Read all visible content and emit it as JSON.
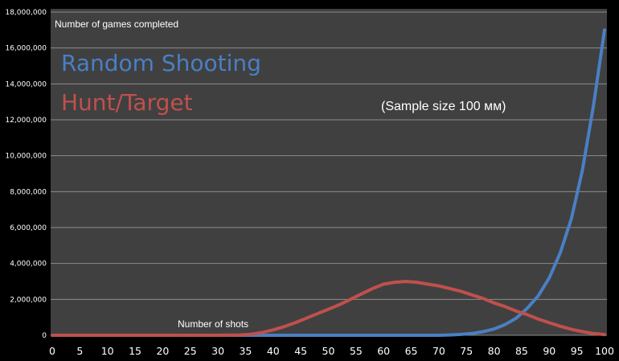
{
  "chart_data": {
    "type": "line",
    "ylabel": "Number of games completed",
    "xlabel": "Number of shots",
    "note": "(Sample size 100 мм)",
    "xlim": [
      0,
      100
    ],
    "ylim": [
      0,
      18000000
    ],
    "x_ticks": [
      "0",
      "5",
      "10",
      "15",
      "20",
      "25",
      "30",
      "35",
      "40",
      "45",
      "50",
      "55",
      "60",
      "65",
      "70",
      "75",
      "80",
      "85",
      "90",
      "95",
      "100"
    ],
    "y_ticks": [
      "0",
      "2,000,000",
      "4,000,000",
      "6,000,000",
      "8,000,000",
      "10,000,000",
      "12,000,000",
      "14,000,000",
      "16,000,000",
      "18,000,000"
    ],
    "grid": true,
    "legend": "top-left",
    "background": "#404040",
    "series": [
      {
        "name": "Random Shooting",
        "color": "#4a7fc4",
        "x": [
          0,
          5,
          10,
          15,
          20,
          25,
          30,
          35,
          40,
          45,
          50,
          55,
          60,
          65,
          70,
          72,
          74,
          76,
          78,
          80,
          82,
          84,
          86,
          88,
          90,
          92,
          94,
          96,
          98,
          100
        ],
        "y": [
          0,
          0,
          0,
          0,
          0,
          0,
          0,
          0,
          0,
          0,
          0,
          0,
          0,
          0,
          0,
          20000,
          50000,
          100000,
          200000,
          350000,
          600000,
          950000,
          1500000,
          2200000,
          3200000,
          4600000,
          6500000,
          9200000,
          12800000,
          17000000
        ]
      },
      {
        "name": "Hunt/Target",
        "color": "#c0504d",
        "x": [
          0,
          5,
          10,
          15,
          20,
          25,
          30,
          34,
          36,
          38,
          40,
          42,
          44,
          46,
          48,
          50,
          52,
          54,
          56,
          58,
          60,
          62,
          64,
          66,
          68,
          70,
          72,
          74,
          76,
          78,
          80,
          82,
          84,
          86,
          88,
          90,
          92,
          94,
          96,
          98,
          100
        ],
        "y": [
          0,
          0,
          0,
          0,
          0,
          0,
          0,
          20000,
          60000,
          150000,
          300000,
          480000,
          700000,
          950000,
          1200000,
          1450000,
          1700000,
          2000000,
          2300000,
          2600000,
          2850000,
          2950000,
          3000000,
          2950000,
          2850000,
          2750000,
          2600000,
          2450000,
          2250000,
          2050000,
          1800000,
          1600000,
          1350000,
          1150000,
          900000,
          700000,
          500000,
          330000,
          200000,
          100000,
          40000
        ]
      }
    ]
  }
}
